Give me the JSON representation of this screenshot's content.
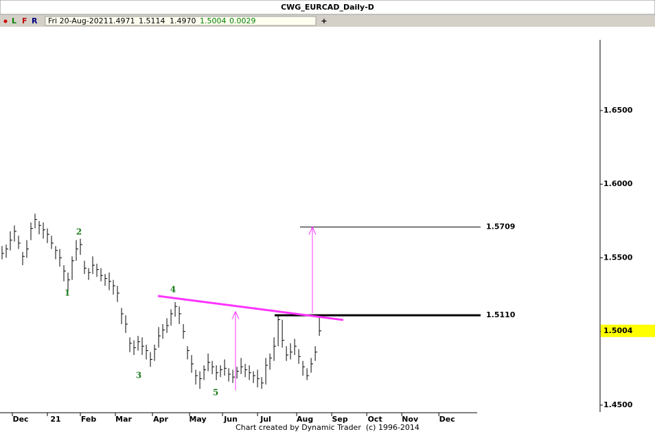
{
  "header": {
    "title": "CWG_EURCAD_Daily-D",
    "buttons": [
      "L",
      "F",
      "R"
    ],
    "info": [
      "Fri 20-Aug-2021",
      "1.4971",
      "1.5114",
      "1.4970",
      "1.5004",
      "0.0029"
    ],
    "plus": "+"
  },
  "chart_data": {
    "type": "hlc",
    "color": "#000000",
    "bars": {
      "high": [
        1.558,
        1.559,
        1.568,
        1.572,
        1.565,
        1.554,
        1.562,
        1.574,
        1.58,
        1.575,
        1.574,
        1.57,
        1.565,
        1.558,
        1.556,
        1.545,
        1.54,
        1.551,
        1.562,
        1.563,
        1.548,
        1.543,
        1.551,
        1.546,
        1.543,
        1.539,
        1.54,
        1.535,
        1.531,
        1.516,
        1.511,
        1.496,
        1.494,
        1.497,
        1.496,
        1.491,
        1.486,
        1.491,
        1.503,
        1.505,
        1.509,
        1.515,
        1.52,
        1.517,
        1.505,
        1.49,
        1.484,
        1.474,
        1.473,
        1.477,
        1.485,
        1.48,
        1.477,
        1.477,
        1.481,
        1.475,
        1.474,
        1.476,
        1.482,
        1.478,
        1.477,
        1.473,
        1.474,
        1.469,
        1.482,
        1.485,
        1.496,
        1.511,
        1.508,
        1.49,
        1.492,
        1.495,
        1.488,
        1.48,
        1.475,
        1.482,
        1.49,
        1.5114
      ],
      "low": [
        1.549,
        1.55,
        1.555,
        1.561,
        1.556,
        1.545,
        1.55,
        1.562,
        1.57,
        1.566,
        1.563,
        1.56,
        1.556,
        1.549,
        1.544,
        1.534,
        1.527,
        1.535,
        1.548,
        1.552,
        1.539,
        1.535,
        1.539,
        1.537,
        1.534,
        1.531,
        1.528,
        1.525,
        1.52,
        1.505,
        1.499,
        1.486,
        1.484,
        1.487,
        1.484,
        1.481,
        1.476,
        1.48,
        1.489,
        1.495,
        1.499,
        1.504,
        1.51,
        1.505,
        1.495,
        1.481,
        1.472,
        1.464,
        1.461,
        1.467,
        1.473,
        1.471,
        1.467,
        1.469,
        1.47,
        1.466,
        1.465,
        1.468,
        1.471,
        1.469,
        1.467,
        1.465,
        1.462,
        1.461,
        1.464,
        1.474,
        1.48,
        1.49,
        1.489,
        1.48,
        1.481,
        1.484,
        1.478,
        1.47,
        1.467,
        1.472,
        1.48,
        1.497
      ],
      "close": [
        1.553,
        1.556,
        1.562,
        1.568,
        1.56,
        1.551,
        1.556,
        1.57,
        1.576,
        1.572,
        1.569,
        1.566,
        1.56,
        1.555,
        1.55,
        1.541,
        1.535,
        1.548,
        1.556,
        1.559,
        1.543,
        1.54,
        1.545,
        1.542,
        1.538,
        1.536,
        1.534,
        1.531,
        1.526,
        1.512,
        1.505,
        1.492,
        1.489,
        1.493,
        1.49,
        1.487,
        1.481,
        1.488,
        1.497,
        1.501,
        1.504,
        1.512,
        1.517,
        1.512,
        1.5,
        1.487,
        1.478,
        1.47,
        1.468,
        1.474,
        1.479,
        1.476,
        1.472,
        1.474,
        1.475,
        1.471,
        1.469,
        1.473,
        1.476,
        1.474,
        1.472,
        1.47,
        1.468,
        1.465,
        1.477,
        1.482,
        1.49,
        1.508,
        1.494,
        1.484,
        1.486,
        1.49,
        1.483,
        1.476,
        1.47,
        1.478,
        1.486,
        1.5004
      ]
    },
    "ylim": [
      1.4453,
      1.698
    ],
    "yticks": [
      {
        "value": 1.45,
        "label": "1.4500"
      },
      {
        "value": 1.5,
        "label": "1.5000"
      },
      {
        "value": 1.55,
        "label": "1.5500"
      },
      {
        "value": 1.6,
        "label": "1.6000"
      },
      {
        "value": 1.65,
        "label": "1.6500"
      }
    ],
    "xlim": [
      -0.5,
      115.3
    ],
    "xticks": [
      {
        "value": 2.5,
        "label": "Dec"
      },
      {
        "value": 11,
        "label": "21"
      },
      {
        "value": 19,
        "label": "Feb"
      },
      {
        "value": 27.5,
        "label": "Mar"
      },
      {
        "value": 36.5,
        "label": "Apr"
      },
      {
        "value": 45.5,
        "label": "May"
      },
      {
        "value": 53.5,
        "label": "Jun"
      },
      {
        "value": 62,
        "label": "Jul"
      },
      {
        "value": 71.5,
        "label": "Aug"
      },
      {
        "value": 80,
        "label": "Sep"
      },
      {
        "value": 88.5,
        "label": "Oct"
      },
      {
        "value": 97,
        "label": "Nov"
      },
      {
        "value": 106,
        "label": "Dec"
      }
    ],
    "levels": [
      {
        "value": 1.5709,
        "label": "1.5709"
      },
      {
        "value": 1.511,
        "label": "1.5110"
      }
    ],
    "last_price": {
      "value": 1.5004,
      "label": "1.5004",
      "color": "#ffff00"
    },
    "trendline": {
      "values": [
        1.5241,
        1.5078
      ],
      "color": "#ff33ff"
    },
    "arrows": [
      {
        "from": 1.46,
        "to": 1.5135
      },
      {
        "from": 1.5125,
        "to": 1.5709
      }
    ],
    "arrow_color": "#ff33ff",
    "wave_labels": [
      "1",
      "2",
      "3",
      "4",
      "5"
    ],
    "wave_color": "#1a7a1a"
  },
  "footer": "Chart created by Dynamic Trader  (c) 1996-2014"
}
